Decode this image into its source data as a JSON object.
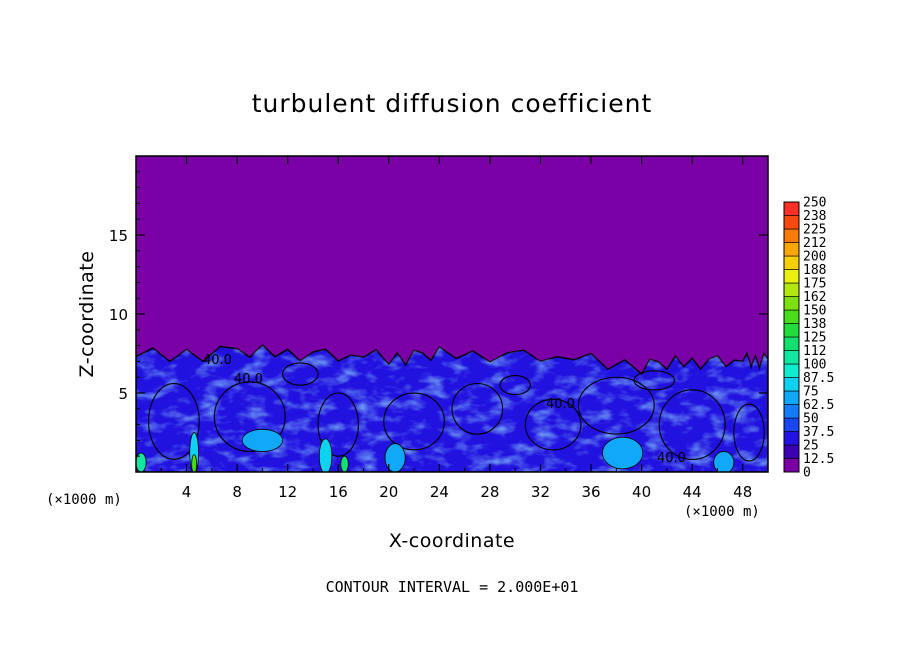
{
  "chart_data": {
    "type": "heatmap",
    "title": "turbulent diffusion coefficient",
    "xlabel": "X-coordinate",
    "ylabel": "Z-coordinate",
    "x_unit": "(×1000 m)",
    "y_unit": "(×1000 m)",
    "xlim": [
      0,
      50
    ],
    "ylim": [
      0,
      20
    ],
    "x_ticks": [
      "4",
      "8",
      "12",
      "16",
      "20",
      "24",
      "28",
      "32",
      "36",
      "40",
      "44",
      "48"
    ],
    "y_ticks": [
      "5",
      "10",
      "15"
    ],
    "contour_interval_text": "CONTOUR INTERVAL = 2.000E+01",
    "contour_labels": [
      "40.0",
      "40.0",
      "40.0",
      "40.0"
    ],
    "colorbar": {
      "levels": [
        "0",
        "12.5",
        "25",
        "37.5",
        "50",
        "62.5",
        "75",
        "87.5",
        "100",
        "112",
        "125",
        "138",
        "150",
        "162",
        "175",
        "188",
        "200",
        "212",
        "225",
        "238",
        "250"
      ],
      "colors": [
        "#7a00a6",
        "#3a00b4",
        "#2212e0",
        "#1a46f0",
        "#127cf8",
        "#10a8f8",
        "#10d2f0",
        "#10ecd0",
        "#12e6a0",
        "#14e070",
        "#22dc3c",
        "#48dc1a",
        "#7ee012",
        "#b2e810",
        "#e8f010",
        "#f8d008",
        "#f8a608",
        "#f87a08",
        "#f84a10",
        "#f83028",
        "#f08078"
      ]
    },
    "region": {
      "background_value_range": "0-12.5",
      "turbulent_layer_top_approx": [
        [
          0,
          7.3
        ],
        [
          8,
          7.6
        ],
        [
          14,
          7.4
        ],
        [
          20,
          7.2
        ],
        [
          24,
          7.4
        ],
        [
          32,
          7.3
        ],
        [
          40,
          6.7
        ],
        [
          44,
          6.9
        ],
        [
          48,
          7.0
        ],
        [
          50,
          7.1
        ]
      ],
      "dominant_layer_value_range": "37.5-62.5"
    }
  }
}
